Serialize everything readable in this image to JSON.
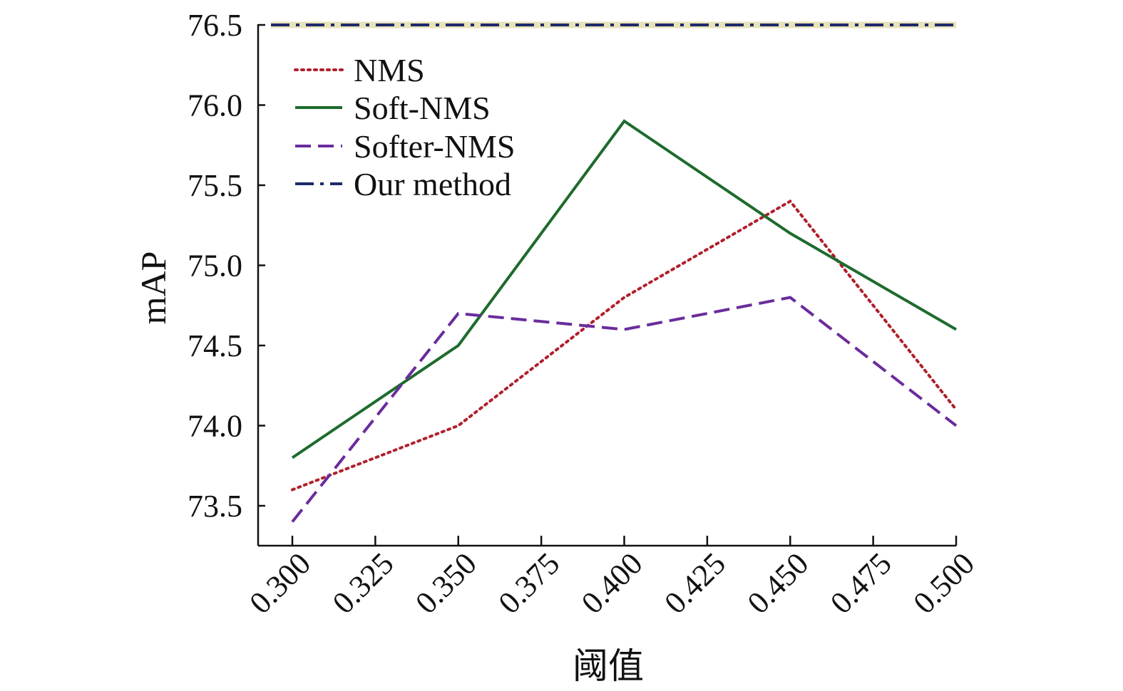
{
  "chart_data": {
    "type": "line",
    "title": "",
    "xlabel": "阈值",
    "ylabel": "mAP",
    "x": [
      0.3,
      0.35,
      0.4,
      0.45,
      0.5
    ],
    "xticks": [
      "0.300",
      "0.325",
      "0.350",
      "0.375",
      "0.400",
      "0.425",
      "0.450",
      "0.475",
      "0.500"
    ],
    "xtick_values": [
      0.3,
      0.325,
      0.35,
      0.375,
      0.4,
      0.425,
      0.45,
      0.475,
      0.5
    ],
    "xlim": [
      0.279,
      0.5
    ],
    "yticks": [
      "73.5",
      "74.0",
      "74.5",
      "75.0",
      "75.5",
      "76.0",
      "76.5"
    ],
    "ytick_values": [
      73.5,
      74.0,
      74.5,
      75.0,
      75.5,
      76.0,
      76.5
    ],
    "ylim": [
      73.25,
      76.5
    ],
    "grid": false,
    "legend_position": "top-left",
    "series": [
      {
        "name": "NMS",
        "values": [
          73.6,
          74.0,
          74.8,
          75.4,
          74.1
        ],
        "color": "#b0202c",
        "style": "dotted"
      },
      {
        "name": "Soft-NMS",
        "values": [
          73.8,
          74.5,
          75.9,
          75.2,
          74.6
        ],
        "color": "#1e6b2e",
        "style": "solid"
      },
      {
        "name": "Softer-NMS",
        "values": [
          73.4,
          74.7,
          74.6,
          74.8,
          74.0
        ],
        "color": "#6a2c9c",
        "style": "dashed"
      },
      {
        "name": "Our method",
        "values": [
          76.5,
          76.5,
          76.5,
          76.5,
          76.5
        ],
        "color": "#1f2a6b",
        "style": "dashdot"
      }
    ]
  }
}
